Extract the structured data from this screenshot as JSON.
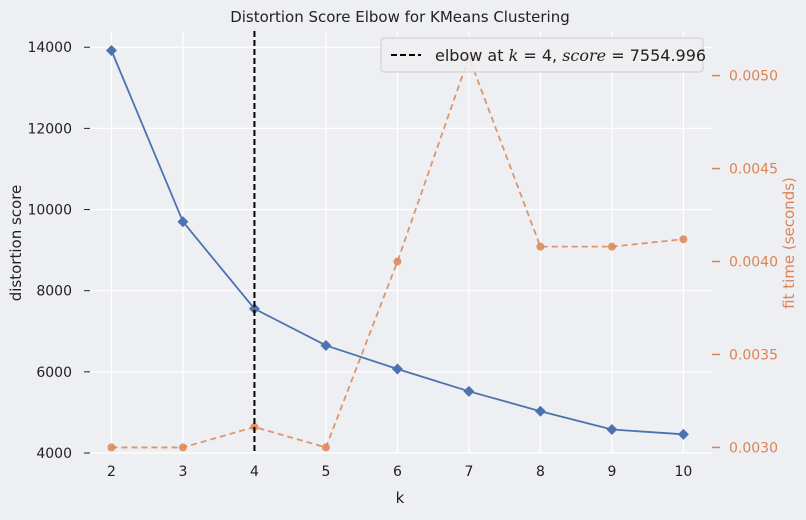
{
  "chart_data": {
    "type": "line",
    "title": "Distortion Score Elbow for KMeans Clustering",
    "xlabel": "k",
    "ylabel": "distortion score",
    "y2label": "fit time (seconds)",
    "x": [
      2,
      3,
      4,
      5,
      6,
      7,
      8,
      9,
      10
    ],
    "xlim": [
      1.7,
      10.4
    ],
    "ylim": [
      4000,
      14400
    ],
    "y2lim": [
      0.00297,
      0.00524
    ],
    "xticks": [
      "2",
      "3",
      "4",
      "5",
      "6",
      "7",
      "8",
      "9",
      "10"
    ],
    "yticks": [
      "4000",
      "6000",
      "8000",
      "10000",
      "12000",
      "14000"
    ],
    "y2ticks": [
      "0.0030",
      "0.0035",
      "0.0040",
      "0.0045",
      "0.0050"
    ],
    "series": [
      {
        "role": "distortion",
        "axis": "left",
        "color": "#4c72b0",
        "marker": "diamond",
        "line": "solid",
        "values": [
          13920,
          9700,
          7555,
          6650,
          6070,
          5520,
          5030,
          4580,
          4460
        ]
      },
      {
        "role": "fit_time",
        "axis": "right",
        "color": "#dd8452",
        "marker": "circle",
        "line": "dashed",
        "values": [
          0.003,
          0.003,
          0.00311,
          0.003,
          0.004,
          0.0051,
          0.00408,
          0.00408,
          0.00412
        ]
      }
    ],
    "elbow": {
      "k": 4,
      "color": "#000000"
    },
    "legend": {
      "placement": "top-right",
      "text_prefix": "elbow at ",
      "k_symbol": "k",
      "k_value": " = 4, ",
      "score_symbol": "score",
      "score_value": " = 7554.996"
    },
    "grid": true,
    "colors": {
      "background": "#eeeff2",
      "grid": "#ffffff",
      "left_axis_text": "#222222",
      "right_axis_text": "#dd8452"
    }
  }
}
